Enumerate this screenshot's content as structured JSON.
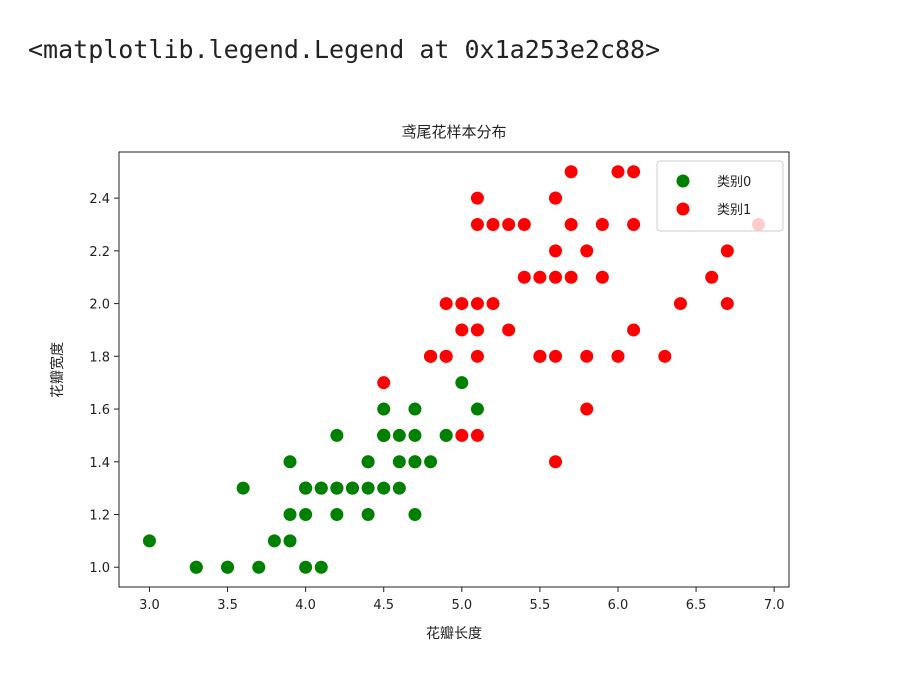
{
  "output_text": "<matplotlib.legend.Legend at 0x1a253e2c88>",
  "chart_data": {
    "type": "scatter",
    "title": "鸢尾花样本分布",
    "x_label": "花瓣长度",
    "y_label": "花瓣宽度",
    "xlim": [
      2.805,
      7.095
    ],
    "ylim": [
      0.925,
      2.575
    ],
    "xticks": [
      {
        "value": 3,
        "label": "3.0"
      },
      3.5,
      {
        "value": 4,
        "label": "4.0"
      },
      4.5,
      {
        "value": 5,
        "label": "5.0"
      },
      5.5,
      {
        "value": 6,
        "label": "6.0"
      },
      6.5,
      {
        "value": 7,
        "label": "7.0"
      }
    ],
    "yticks": [
      {
        "value": 1,
        "label": "1.0"
      },
      1.2,
      1.4,
      1.6,
      1.8,
      {
        "value": 2,
        "label": "2.0"
      },
      2.2,
      2.4
    ],
    "legend": "upper right",
    "series": [
      {
        "name": "类别0",
        "color": "#008000",
        "x": [
          4.7,
          4.5,
          4.9,
          4.0,
          4.6,
          4.5,
          4.7,
          3.3,
          4.6,
          3.9,
          3.5,
          4.2,
          4.0,
          4.7,
          3.6,
          4.4,
          4.5,
          4.1,
          4.5,
          3.9,
          4.8,
          4.0,
          4.9,
          4.7,
          4.3,
          4.4,
          4.8,
          5.0,
          4.5,
          3.5,
          3.8,
          3.7,
          3.9,
          5.1,
          4.5,
          4.5,
          4.7,
          4.4,
          4.1,
          4.0,
          4.4,
          4.6,
          4.0,
          3.3,
          4.2,
          4.2,
          4.2,
          4.3,
          3.0,
          4.1
        ],
        "values": [
          1.4,
          1.5,
          1.5,
          1.3,
          1.5,
          1.3,
          1.6,
          1.0,
          1.3,
          1.4,
          1.0,
          1.5,
          1.0,
          1.4,
          1.3,
          1.4,
          1.5,
          1.0,
          1.5,
          1.1,
          1.8,
          1.3,
          1.5,
          1.2,
          1.3,
          1.4,
          1.4,
          1.7,
          1.5,
          1.0,
          1.1,
          1.0,
          1.2,
          1.6,
          1.5,
          1.6,
          1.5,
          1.3,
          1.3,
          1.3,
          1.2,
          1.4,
          1.2,
          1.0,
          1.3,
          1.2,
          1.3,
          1.3,
          1.1,
          1.3
        ]
      },
      {
        "name": "类别1",
        "color": "#ff0000",
        "x": [
          6.0,
          5.1,
          5.9,
          5.6,
          5.8,
          6.6,
          4.5,
          6.3,
          5.8,
          6.1,
          5.1,
          5.3,
          5.5,
          5.0,
          5.1,
          5.3,
          5.5,
          6.7,
          6.9,
          5.0,
          5.7,
          4.9,
          6.7,
          4.9,
          5.7,
          6.0,
          4.8,
          4.9,
          5.6,
          5.8,
          6.1,
          6.4,
          5.6,
          5.1,
          5.6,
          6.1,
          5.6,
          5.5,
          4.8,
          5.4,
          5.6,
          5.1,
          5.1,
          5.9,
          5.7,
          5.2,
          5.0,
          5.2,
          5.4,
          5.1
        ],
        "values": [
          2.5,
          1.9,
          2.1,
          1.8,
          2.2,
          2.1,
          1.7,
          1.8,
          1.8,
          2.5,
          2.0,
          1.9,
          2.1,
          2.0,
          2.4,
          2.3,
          1.8,
          2.2,
          2.3,
          1.5,
          2.3,
          2.0,
          2.0,
          1.8,
          2.1,
          1.8,
          1.8,
          1.8,
          2.1,
          1.6,
          1.9,
          2.0,
          2.2,
          1.5,
          1.4,
          2.3,
          2.4,
          1.8,
          1.8,
          2.1,
          2.4,
          2.3,
          1.9,
          2.3,
          2.5,
          2.3,
          1.9,
          2.0,
          2.3,
          1.8
        ]
      }
    ]
  }
}
